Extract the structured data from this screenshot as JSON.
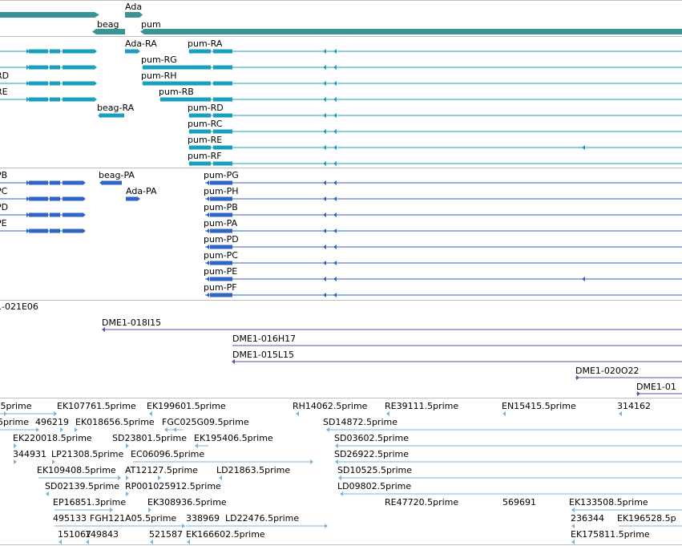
{
  "tracks": {
    "genes": {
      "color": "#3a9494",
      "labels": [
        "Ada",
        "beag",
        "pum"
      ]
    },
    "transcripts": {
      "color": "#1b9fbf",
      "labels": [
        "RD",
        "RE",
        "Ada-RA",
        "pum-RA",
        "pum-RG",
        "pum-RH",
        "pum-RB",
        "beag-RA",
        "pum-RD",
        "pum-RC",
        "pum-RE",
        "pum-RF"
      ]
    },
    "proteins": {
      "color": "#2f66c6",
      "labels": [
        "PB",
        "PC",
        "PD",
        "PE",
        "beag-PA",
        "Ada-PA",
        "pum-PG",
        "pum-PH",
        "pum-PB",
        "pum-PA",
        "pum-PD",
        "pum-PC",
        "pum-PE",
        "pum-PF"
      ]
    },
    "clones": {
      "color": "#6a4aa6",
      "labels": [
        "1-021E06",
        "DME1-018I15",
        "DME1-016H17",
        "DME1-015L15",
        "DME1-020O22",
        "DME1-01"
      ]
    },
    "ests": {
      "color": "#7fb3d8",
      "labels": [
        ".5prime",
        "EK107761.5prime",
        "EK199601.5prime",
        "RH14062.5prime",
        "RE39111.5prime",
        "EN15415.5prime",
        "314162",
        "5prime",
        "496219",
        "EK018656.5prime",
        "FGC025G09.5prime",
        "SD14872.5prime",
        "EK220018.5prime",
        "SD23801.5prime",
        "EK195406.5prime",
        "SD03602.5prime",
        "344931",
        "LP21308.5prime",
        "EC06096.5prime",
        "SD26922.5prime",
        "EK109408.5prime",
        "AT12127.5prime",
        "LD21863.5prime",
        "SD10525.5prime",
        "SD02139.5prime",
        "RP001025912.5prime",
        "LD09802.5prime",
        "EP16851.3prime",
        "EK308936.5prime",
        "RE47720.5prime",
        "569691",
        "EK133508.5prime",
        "495133",
        "FGH121A05.5prime",
        "338969",
        "LD22476.5prime",
        "236344",
        "EK196528.5p",
        "151067",
        "149843",
        "521587",
        "EK166602.5prime",
        "EK175811.5prime"
      ]
    }
  }
}
